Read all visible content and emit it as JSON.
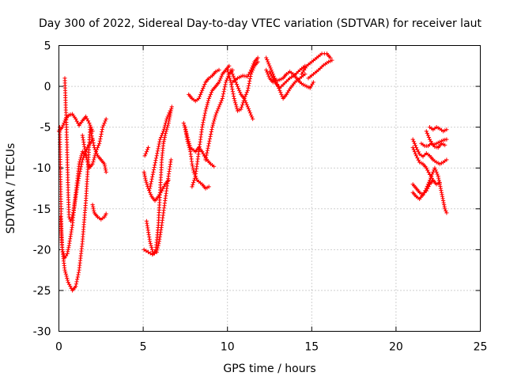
{
  "chart_data": {
    "type": "scatter",
    "title": "Day 300 of 2022, Sidereal Day-to-day VTEC variation (SDTVAR) for receiver laut",
    "xlabel": "GPS time / hours",
    "ylabel": "SDTVAR / TECUs",
    "xlim": [
      0,
      25
    ],
    "ylim": [
      -30,
      5
    ],
    "xticks": [
      0,
      5,
      10,
      15,
      20,
      25
    ],
    "yticks": [
      -30,
      -25,
      -20,
      -15,
      -10,
      -5,
      0,
      5
    ],
    "grid": true,
    "marker": "plus",
    "color": "#ff0000",
    "series": [
      {
        "points": [
          [
            0.0,
            -5.5
          ],
          [
            0.2,
            -5.0
          ],
          [
            0.4,
            -4.0
          ],
          [
            0.6,
            -3.5
          ],
          [
            0.8,
            -3.4
          ],
          [
            1.0,
            -4.0
          ],
          [
            1.2,
            -4.8
          ],
          [
            1.4,
            -4.2
          ],
          [
            1.6,
            -3.7
          ],
          [
            1.8,
            -4.5
          ],
          [
            2.0,
            -5.5
          ]
        ]
      },
      {
        "points": [
          [
            0.05,
            -5.0
          ],
          [
            0.1,
            -12.0
          ],
          [
            0.15,
            -18.0
          ],
          [
            0.2,
            -20.0
          ],
          [
            0.35,
            -21.0
          ],
          [
            0.5,
            -20.5
          ],
          [
            0.6,
            -19.5
          ],
          [
            0.8,
            -17.0
          ],
          [
            1.0,
            -13.0
          ],
          [
            1.2,
            -9.5
          ],
          [
            1.4,
            -8.0
          ],
          [
            1.6,
            -8.5
          ]
        ]
      },
      {
        "points": [
          [
            0.1,
            -16.0
          ],
          [
            0.2,
            -20.0
          ],
          [
            0.35,
            -22.5
          ],
          [
            0.55,
            -24.0
          ],
          [
            0.8,
            -25.0
          ],
          [
            1.0,
            -24.5
          ],
          [
            1.2,
            -22.5
          ],
          [
            1.4,
            -19.0
          ],
          [
            1.6,
            -14.0
          ],
          [
            1.75,
            -9.0
          ],
          [
            1.85,
            -5.0
          ]
        ]
      },
      {
        "points": [
          [
            0.35,
            1.0
          ],
          [
            0.4,
            -2.0
          ],
          [
            0.45,
            -5.0
          ],
          [
            0.5,
            -9.0
          ],
          [
            0.55,
            -13.0
          ],
          [
            0.6,
            -16.0
          ],
          [
            0.7,
            -16.5
          ],
          [
            0.85,
            -15.5
          ],
          [
            1.0,
            -13.5
          ],
          [
            1.2,
            -11.0
          ],
          [
            1.4,
            -9.0
          ],
          [
            1.7,
            -7.5
          ],
          [
            2.0,
            -6.5
          ]
        ]
      },
      {
        "points": [
          [
            1.4,
            -6.0
          ],
          [
            1.6,
            -8.5
          ],
          [
            1.8,
            -10.0
          ],
          [
            2.0,
            -9.5
          ],
          [
            2.2,
            -8.0
          ],
          [
            2.4,
            -7.0
          ],
          [
            2.6,
            -5.0
          ],
          [
            2.8,
            -4.0
          ]
        ]
      },
      {
        "points": [
          [
            1.9,
            -5.5
          ],
          [
            2.1,
            -7.5
          ],
          [
            2.3,
            -8.5
          ],
          [
            2.5,
            -9.0
          ],
          [
            2.7,
            -9.5
          ],
          [
            2.8,
            -10.5
          ]
        ]
      },
      {
        "points": [
          [
            2.0,
            -14.5
          ],
          [
            2.1,
            -15.5
          ],
          [
            2.3,
            -16.0
          ],
          [
            2.5,
            -16.3
          ],
          [
            2.7,
            -16.0
          ],
          [
            2.8,
            -15.6
          ]
        ]
      },
      {
        "points": [
          [
            5.1,
            -8.5
          ],
          [
            5.2,
            -8.0
          ],
          [
            5.3,
            -7.5
          ]
        ]
      },
      {
        "points": [
          [
            5.05,
            -10.5
          ],
          [
            5.15,
            -11.5
          ],
          [
            5.3,
            -12.5
          ],
          [
            5.5,
            -13.5
          ],
          [
            5.7,
            -14.0
          ],
          [
            5.9,
            -13.5
          ],
          [
            6.1,
            -12.8
          ],
          [
            6.3,
            -12.0
          ],
          [
            6.5,
            -11.5
          ]
        ]
      },
      {
        "points": [
          [
            5.05,
            -20.0
          ],
          [
            5.3,
            -20.3
          ],
          [
            5.55,
            -20.6
          ],
          [
            5.8,
            -20.3
          ],
          [
            5.95,
            -19.0
          ],
          [
            6.1,
            -17.0
          ],
          [
            6.3,
            -14.0
          ],
          [
            6.5,
            -11.0
          ],
          [
            6.65,
            -9.0
          ]
        ]
      },
      {
        "points": [
          [
            5.2,
            -16.5
          ],
          [
            5.4,
            -19.0
          ],
          [
            5.6,
            -20.5
          ],
          [
            5.75,
            -20.0
          ],
          [
            5.9,
            -17.0
          ],
          [
            6.0,
            -13.0
          ],
          [
            6.1,
            -9.0
          ],
          [
            6.2,
            -7.0
          ],
          [
            6.3,
            -6.0
          ],
          [
            6.5,
            -4.5
          ],
          [
            6.6,
            -3.5
          ],
          [
            6.7,
            -2.5
          ]
        ]
      },
      {
        "points": [
          [
            5.4,
            -12.5
          ],
          [
            5.6,
            -10.5
          ],
          [
            5.8,
            -8.5
          ],
          [
            6.0,
            -6.5
          ],
          [
            6.2,
            -5.5
          ],
          [
            6.4,
            -4.0
          ],
          [
            6.6,
            -3.0
          ]
        ]
      },
      {
        "points": [
          [
            7.4,
            -4.5
          ],
          [
            7.6,
            -6.0
          ],
          [
            7.8,
            -7.5
          ],
          [
            8.1,
            -8.0
          ],
          [
            8.3,
            -7.5
          ],
          [
            8.5,
            -8.0
          ],
          [
            8.7,
            -8.8
          ],
          [
            9.0,
            -9.5
          ],
          [
            9.2,
            -9.8
          ]
        ]
      },
      {
        "points": [
          [
            7.5,
            -5.0
          ],
          [
            7.6,
            -6.5
          ],
          [
            7.8,
            -8.0
          ],
          [
            7.9,
            -9.5
          ],
          [
            8.0,
            -10.5
          ],
          [
            8.2,
            -11.5
          ],
          [
            8.5,
            -12.0
          ],
          [
            8.7,
            -12.5
          ],
          [
            8.9,
            -12.3
          ]
        ]
      },
      {
        "points": [
          [
            7.9,
            -12.3
          ],
          [
            8.1,
            -11.0
          ],
          [
            8.3,
            -8.0
          ],
          [
            8.5,
            -5.0
          ],
          [
            8.7,
            -3.0
          ],
          [
            8.9,
            -1.5
          ],
          [
            9.1,
            -0.5
          ],
          [
            9.3,
            0.0
          ],
          [
            9.5,
            0.5
          ],
          [
            9.7,
            1.5
          ],
          [
            9.9,
            2.0
          ],
          [
            10.1,
            2.5
          ]
        ]
      },
      {
        "points": [
          [
            7.7,
            -1.0
          ],
          [
            7.9,
            -1.5
          ],
          [
            8.1,
            -1.8
          ],
          [
            8.3,
            -1.5
          ],
          [
            8.5,
            -0.5
          ],
          [
            8.7,
            0.5
          ],
          [
            8.9,
            1.0
          ],
          [
            9.1,
            1.3
          ],
          [
            9.3,
            1.8
          ],
          [
            9.5,
            2.0
          ]
        ]
      },
      {
        "points": [
          [
            8.7,
            -9.0
          ],
          [
            8.9,
            -7.0
          ],
          [
            9.1,
            -5.0
          ],
          [
            9.3,
            -3.5
          ],
          [
            9.5,
            -2.5
          ],
          [
            9.7,
            -1.5
          ],
          [
            9.9,
            0.5
          ],
          [
            10.1,
            1.5
          ],
          [
            10.3,
            2.0
          ]
        ]
      },
      {
        "points": [
          [
            10.0,
            2.0
          ],
          [
            10.2,
            0.5
          ],
          [
            10.4,
            -1.5
          ],
          [
            10.6,
            -3.0
          ],
          [
            10.8,
            -2.8
          ],
          [
            11.0,
            -1.5
          ],
          [
            11.2,
            -0.5
          ],
          [
            11.4,
            1.5
          ],
          [
            11.6,
            2.5
          ],
          [
            11.8,
            3.0
          ]
        ]
      },
      {
        "points": [
          [
            10.3,
            0.5
          ],
          [
            10.6,
            1.0
          ],
          [
            10.9,
            1.3
          ],
          [
            11.2,
            1.2
          ],
          [
            11.4,
            2.0
          ],
          [
            11.6,
            3.0
          ],
          [
            11.8,
            3.5
          ]
        ]
      },
      {
        "points": [
          [
            10.2,
            2.0
          ],
          [
            10.4,
            1.0
          ],
          [
            10.6,
            0.0
          ],
          [
            10.8,
            -1.0
          ],
          [
            11.0,
            -1.5
          ],
          [
            11.2,
            -2.5
          ],
          [
            11.4,
            -3.5
          ],
          [
            11.5,
            -4.0
          ]
        ]
      },
      {
        "points": [
          [
            12.3,
            3.5
          ],
          [
            12.5,
            2.5
          ],
          [
            12.7,
            1.5
          ],
          [
            12.9,
            0.5
          ],
          [
            13.1,
            -0.5
          ],
          [
            13.3,
            -1.5
          ],
          [
            13.5,
            -1.0
          ],
          [
            13.7,
            -0.3
          ],
          [
            14.0,
            0.5
          ],
          [
            14.3,
            1.0
          ],
          [
            14.6,
            1.5
          ]
        ]
      },
      {
        "points": [
          [
            12.5,
            1.8
          ],
          [
            12.7,
            1.0
          ],
          [
            12.9,
            0.3
          ],
          [
            13.1,
            -0.2
          ],
          [
            13.3,
            0.2
          ],
          [
            13.5,
            0.6
          ],
          [
            13.7,
            1.0
          ],
          [
            14.0,
            1.4
          ],
          [
            14.3,
            2.0
          ],
          [
            14.6,
            2.5
          ]
        ]
      },
      {
        "points": [
          [
            12.3,
            2.0
          ],
          [
            12.5,
            1.0
          ],
          [
            12.7,
            0.5
          ],
          [
            12.9,
            0.7
          ],
          [
            13.1,
            0.8
          ],
          [
            13.3,
            1.0
          ],
          [
            13.5,
            1.5
          ],
          [
            13.7,
            1.8
          ],
          [
            13.9,
            1.5
          ],
          [
            14.1,
            1.0
          ],
          [
            14.3,
            0.5
          ],
          [
            14.5,
            0.2
          ],
          [
            14.7,
            0.0
          ],
          [
            14.9,
            -0.2
          ],
          [
            15.1,
            0.5
          ]
        ]
      },
      {
        "points": [
          [
            14.4,
            1.5
          ],
          [
            14.7,
            2.5
          ],
          [
            15.0,
            3.0
          ],
          [
            15.3,
            3.5
          ],
          [
            15.6,
            4.0
          ],
          [
            15.9,
            4.0
          ],
          [
            16.1,
            3.5
          ]
        ]
      },
      {
        "points": [
          [
            14.8,
            1.0
          ],
          [
            15.1,
            1.5
          ],
          [
            15.4,
            2.0
          ],
          [
            15.7,
            2.6
          ],
          [
            16.0,
            3.0
          ],
          [
            16.2,
            3.2
          ]
        ]
      },
      {
        "points": [
          [
            21.0,
            -6.5
          ],
          [
            21.2,
            -7.5
          ],
          [
            21.4,
            -8.3
          ],
          [
            21.6,
            -8.6
          ],
          [
            21.8,
            -8.2
          ],
          [
            22.0,
            -8.5
          ],
          [
            22.2,
            -9.0
          ],
          [
            22.4,
            -9.3
          ],
          [
            22.6,
            -9.5
          ],
          [
            22.8,
            -9.3
          ],
          [
            23.0,
            -9.0
          ]
        ]
      },
      {
        "points": [
          [
            21.0,
            -12.0
          ],
          [
            21.2,
            -12.5
          ],
          [
            21.4,
            -13.0
          ],
          [
            21.6,
            -13.3
          ],
          [
            21.8,
            -12.5
          ],
          [
            22.0,
            -11.5
          ],
          [
            22.2,
            -10.5
          ],
          [
            22.3,
            -10.0
          ],
          [
            22.5,
            -11.0
          ],
          [
            22.6,
            -12.0
          ],
          [
            22.7,
            -13.0
          ],
          [
            22.8,
            -14.0
          ],
          [
            22.9,
            -15.0
          ],
          [
            23.0,
            -15.5
          ]
        ]
      },
      {
        "points": [
          [
            21.0,
            -7.5
          ],
          [
            21.2,
            -8.5
          ],
          [
            21.4,
            -9.3
          ],
          [
            21.6,
            -9.5
          ],
          [
            21.8,
            -10.0
          ],
          [
            22.0,
            -10.8
          ],
          [
            22.2,
            -11.5
          ],
          [
            22.4,
            -12.0
          ],
          [
            22.6,
            -11.8
          ]
        ]
      },
      {
        "points": [
          [
            21.0,
            -13.0
          ],
          [
            21.2,
            -13.5
          ],
          [
            21.4,
            -13.8
          ],
          [
            21.6,
            -13.2
          ],
          [
            21.8,
            -12.8
          ],
          [
            22.0,
            -12.0
          ],
          [
            22.2,
            -11.5
          ]
        ]
      },
      {
        "points": [
          [
            21.8,
            -5.5
          ],
          [
            22.0,
            -6.5
          ],
          [
            22.2,
            -7.2
          ],
          [
            22.4,
            -7.0
          ],
          [
            22.6,
            -6.8
          ],
          [
            22.8,
            -6.6
          ],
          [
            23.0,
            -6.5
          ]
        ]
      },
      {
        "points": [
          [
            22.0,
            -5.0
          ],
          [
            22.2,
            -5.3
          ],
          [
            22.4,
            -5.0
          ],
          [
            22.6,
            -5.2
          ],
          [
            22.8,
            -5.5
          ],
          [
            23.0,
            -5.3
          ]
        ]
      },
      {
        "points": [
          [
            21.5,
            -7.0
          ],
          [
            21.7,
            -7.3
          ],
          [
            21.9,
            -7.3
          ],
          [
            22.1,
            -7.0
          ],
          [
            22.3,
            -7.4
          ],
          [
            22.5,
            -7.5
          ],
          [
            22.7,
            -7.0
          ],
          [
            22.9,
            -7.2
          ]
        ]
      }
    ]
  }
}
